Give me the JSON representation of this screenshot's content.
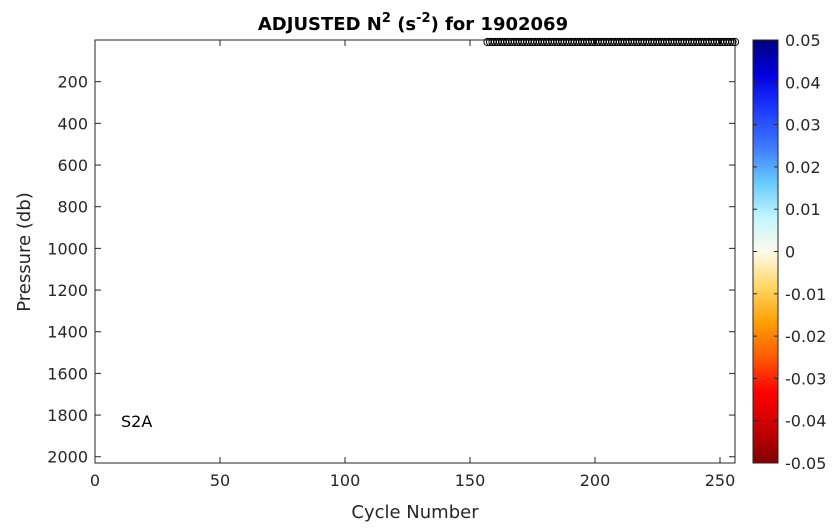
{
  "chart_data": {
    "type": "scatter",
    "title": {
      "prefix": "ADJUSTED N",
      "sup1": "2",
      "mid": " (s",
      "sup2": "-2",
      "suffix": ") for 1902069"
    },
    "xlabel": "Cycle Number",
    "ylabel": "Pressure (db)",
    "xlim": [
      0,
      256
    ],
    "ylim": [
      0,
      2030
    ],
    "y_reversed": true,
    "x_ticks": [
      0,
      50,
      100,
      150,
      200,
      250
    ],
    "y_ticks": [
      200,
      400,
      600,
      800,
      1000,
      1200,
      1400,
      1600,
      1800,
      2000
    ],
    "grid": false,
    "annotation": "S2A",
    "points": {
      "x_start": 157,
      "x_end": 256,
      "y": 0,
      "marker": "open-circle",
      "color": "#000000"
    },
    "colorbar": {
      "min": -0.05,
      "max": 0.05,
      "tick_labels": [
        "0.05",
        "0.04",
        "0.03",
        "0.02",
        "0.01",
        "0",
        "-0.01",
        "-0.02",
        "-0.03",
        "-0.04",
        "-0.05"
      ],
      "tick_values": [
        0.05,
        0.04,
        0.03,
        0.02,
        0.01,
        0,
        -0.01,
        -0.02,
        -0.03,
        -0.04,
        -0.05
      ],
      "colors": [
        "#000080",
        "#0000e0",
        "#1e3cff",
        "#3c78ff",
        "#64c8ff",
        "#bff5ff",
        "#fffbeb",
        "#ffd764",
        "#ffa000",
        "#ff5a00",
        "#ff0000",
        "#c80000",
        "#800000"
      ]
    }
  }
}
